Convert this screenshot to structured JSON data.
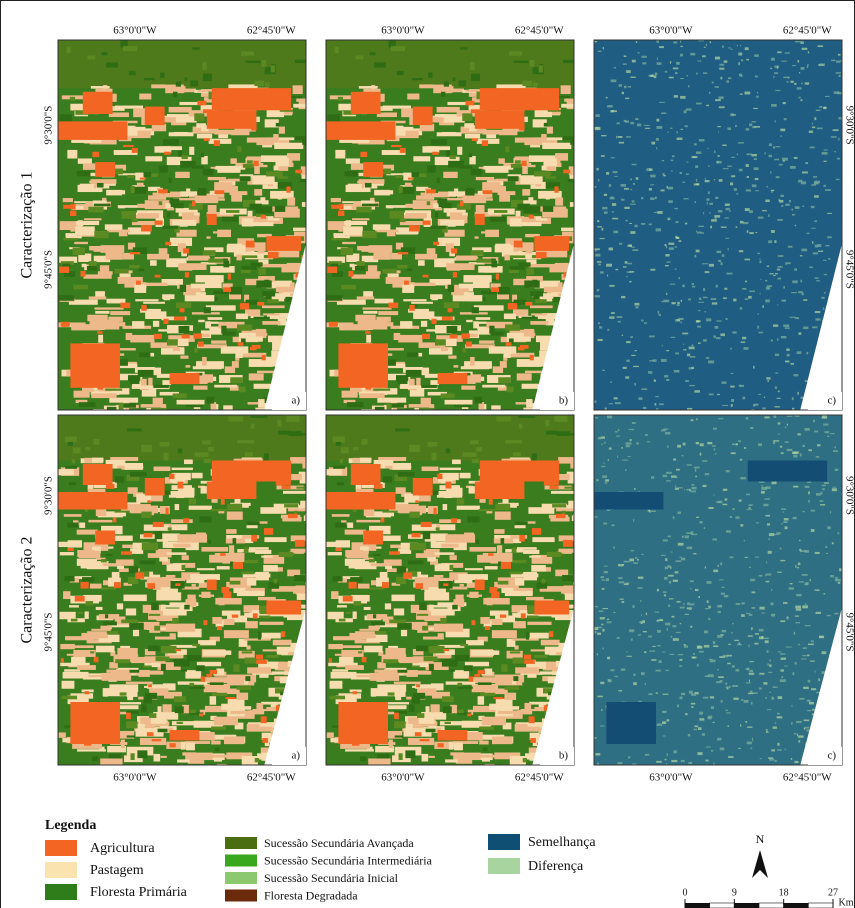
{
  "row_labels": [
    "Caracterização 1",
    "Caracterização 2"
  ],
  "panel_labels": [
    "a)",
    "b)",
    "c)"
  ],
  "longitude_labels": [
    "63°0'0\"W",
    "62°45'0\"W"
  ],
  "latitude_labels": [
    "9°30'0\"S",
    "9°45'0\"S"
  ],
  "legend": {
    "title": "Legenda",
    "classes": [
      {
        "label": "Agricultura",
        "color": "#f26522"
      },
      {
        "label": "Pastagem",
        "color": "#fbe3b0"
      },
      {
        "label": "Floresta Primária",
        "color": "#2e7d1a"
      }
    ],
    "succession": [
      {
        "label": "Sucessão Secundária Avançada",
        "color": "#4a6d12"
      },
      {
        "label": "Sucessão Secundária Intermediária",
        "color": "#3aa81e"
      },
      {
        "label": "Sucessão Secundária Inicial",
        "color": "#8cc870"
      },
      {
        "label": "Floresta Degradada",
        "color": "#6b2a0c"
      }
    ],
    "comparison": [
      {
        "label": "Semelhança",
        "color": "#0f4f73"
      },
      {
        "label": "Diferença",
        "color": "#a8d4a0"
      }
    ]
  },
  "north": "N",
  "scale_bar": {
    "ticks": [
      0,
      9,
      18,
      27
    ],
    "unit": "Km"
  }
}
